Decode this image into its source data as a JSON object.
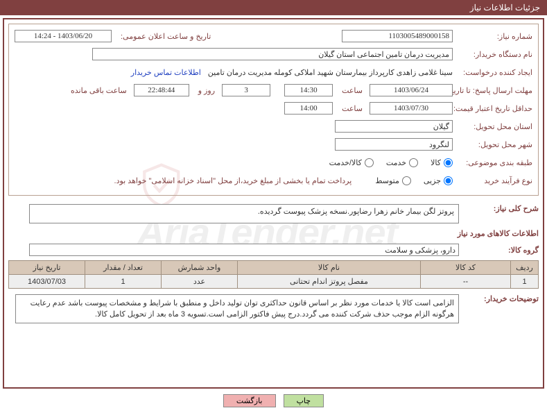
{
  "header": {
    "title": "جزئیات اطلاعات نیاز"
  },
  "form": {
    "need_no": {
      "label": "شماره نیاز:",
      "value": "1103005489000158"
    },
    "public_date": {
      "label": "تاریخ و ساعت اعلان عمومی:",
      "value": "1403/06/20 - 14:24"
    },
    "buyer_name": {
      "label": "نام دستگاه خریدار:",
      "value": "مدیریت درمان تامین اجتماعی استان گیلان"
    },
    "requester": {
      "label": "ایجاد کننده درخواست:",
      "value": "سینا غلامی زاهدی کارپرداز بیمارستان شهید املاکی کومله مدیریت درمان تامین"
    },
    "contact_link": "اطلاعات تماس خریدار",
    "deadline_tx": {
      "label": "مهلت ارسال پاسخ: تا تاریخ:",
      "date": "1403/06/24",
      "time_lbl": "ساعت",
      "time": "14:30",
      "days": "3",
      "days_lbl": "روز و",
      "countdown": "22:48:44",
      "remain_lbl": "ساعت باقی مانده"
    },
    "min_validity": {
      "label": "حداقل تاریخ اعتبار قیمت: تا تاریخ:",
      "date": "1403/07/30",
      "time_lbl": "ساعت",
      "time": "14:00"
    },
    "delivery_province": {
      "label": "استان محل تحویل:",
      "value": "گیلان"
    },
    "delivery_city": {
      "label": "شهر محل تحویل:",
      "value": "لنگرود"
    },
    "classification": {
      "label": "طبقه بندی موضوعی:",
      "opt_goods": "کالا",
      "opt_service": "خدمت",
      "opt_both": "کالا/خدمت"
    },
    "purchase_type": {
      "label": "نوع فرآیند خرید",
      "opt_minor": "جزیی",
      "opt_medium": "متوسط",
      "note": "پرداخت تمام یا بخشی از مبلغ خرید،از محل \"اسناد خزانه اسلامی\" خواهد بود."
    }
  },
  "overview": {
    "label": "شرح کلی نیاز:",
    "text": "پروتز لگن بیمار خانم زهرا رضاپور.نسخه پزشک پیوست گردیده."
  },
  "goods": {
    "title": "اطلاعات کالاهای مورد نیاز",
    "group": {
      "label": "گروه کالا:",
      "value": "دارو، پزشکی و سلامت"
    },
    "table": {
      "headers": [
        "ردیف",
        "کد کالا",
        "نام کالا",
        "واحد شمارش",
        "تعداد / مقدار",
        "تاریخ نیاز"
      ],
      "col_widths": [
        "40px",
        "130px",
        "auto",
        "110px",
        "110px",
        "110px"
      ],
      "rows": [
        [
          "1",
          "--",
          "مفصل پروتز اندام تحتانی",
          "عدد",
          "1",
          "1403/07/03"
        ]
      ]
    }
  },
  "buyer_notes": {
    "label": "توضیحات خریدار:",
    "text": "الزامی است کالا یا خدمات مورد نظر بر اساس قانون حداکثری توان تولید داخل و منطبق با شرایط و مشخصات پیوست باشد عدم رعایت هرگونه الزام موجب حذف شرکت کننده می گردد.درج پیش فاکتور الزامی است.تسویه 3 ماه بعد از تحویل کامل کالا."
  },
  "buttons": {
    "print": "چاپ",
    "back": "بازگشت"
  },
  "watermark": {
    "text": "AriaTender.net"
  }
}
